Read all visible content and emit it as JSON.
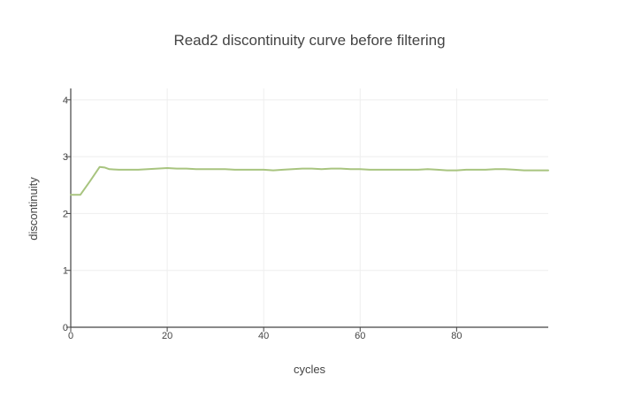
{
  "chart_data": {
    "type": "line",
    "title": "Read2 discontinuity curve before filtering",
    "xlabel": "cycles",
    "ylabel": "discontinuity",
    "xlim": [
      0,
      99
    ],
    "ylim": [
      0,
      4.2
    ],
    "xticks": [
      0,
      20,
      40,
      60,
      80
    ],
    "yticks": [
      0,
      1,
      2,
      3,
      4
    ],
    "grid": true,
    "line_color": "#a8c47f",
    "series": [
      {
        "name": "",
        "x": [
          0,
          2,
          4,
          6,
          7,
          8,
          10,
          12,
          14,
          16,
          18,
          20,
          22,
          24,
          26,
          28,
          30,
          32,
          34,
          36,
          38,
          40,
          42,
          44,
          46,
          48,
          50,
          52,
          54,
          56,
          58,
          60,
          62,
          64,
          66,
          68,
          70,
          72,
          74,
          76,
          78,
          80,
          82,
          84,
          86,
          88,
          90,
          92,
          94,
          96,
          99
        ],
        "y": [
          2.33,
          2.33,
          2.57,
          2.82,
          2.81,
          2.78,
          2.77,
          2.77,
          2.77,
          2.78,
          2.79,
          2.8,
          2.79,
          2.79,
          2.78,
          2.78,
          2.78,
          2.78,
          2.77,
          2.77,
          2.77,
          2.77,
          2.76,
          2.77,
          2.78,
          2.79,
          2.79,
          2.78,
          2.79,
          2.79,
          2.78,
          2.78,
          2.77,
          2.77,
          2.77,
          2.77,
          2.77,
          2.77,
          2.78,
          2.77,
          2.76,
          2.76,
          2.77,
          2.77,
          2.77,
          2.78,
          2.78,
          2.77,
          2.76,
          2.76,
          2.76
        ]
      }
    ]
  }
}
